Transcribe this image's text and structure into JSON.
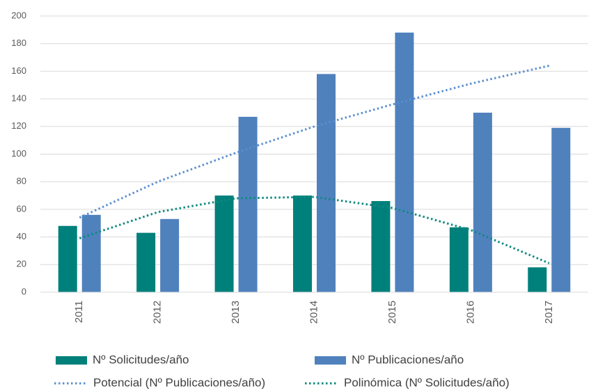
{
  "chart_data": {
    "type": "bar",
    "categories": [
      "2011",
      "2012",
      "2013",
      "2014",
      "2015",
      "2016",
      "2017"
    ],
    "series": [
      {
        "name": "Nº Solicitudes/año",
        "type": "bar",
        "color": "#00807b",
        "values": [
          48,
          43,
          70,
          70,
          66,
          47,
          18
        ]
      },
      {
        "name": "Nº Publicaciones/año",
        "type": "bar",
        "color": "#4f81bd",
        "values": [
          56,
          53,
          127,
          158,
          188,
          130,
          119
        ]
      },
      {
        "name": "Potencial (Nº Publicaciones/año)",
        "type": "line",
        "line_style": "dotted",
        "color": "#5b8fd1",
        "values": [
          54,
          80,
          101,
          120,
          136,
          151,
          164
        ]
      },
      {
        "name": "Polinómica (Nº Solicitudes/año)",
        "type": "line",
        "line_style": "dotted",
        "color": "#0e8a7f",
        "values": [
          39,
          58,
          68,
          69,
          61,
          45,
          21
        ]
      }
    ],
    "ylim": [
      0,
      200
    ],
    "yticks": [
      0,
      20,
      40,
      60,
      80,
      100,
      120,
      140,
      160,
      180,
      200
    ],
    "grid": true,
    "legend": "bottom"
  }
}
